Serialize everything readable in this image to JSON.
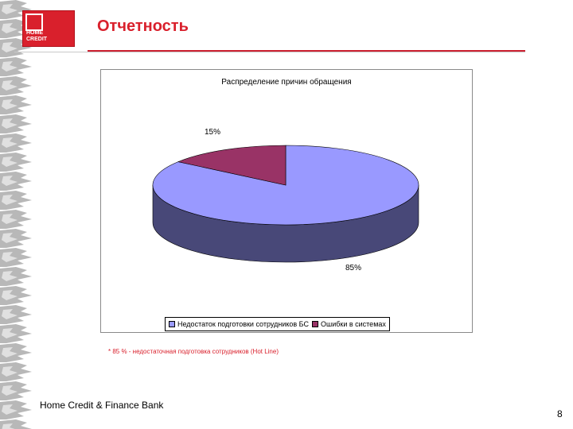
{
  "logo": {
    "text_line1": "HOME",
    "text_line2": "CREDIT"
  },
  "header": {
    "title": "Отчетность"
  },
  "chart_data": {
    "type": "pie",
    "title": "Распределение причин обращения",
    "slices": [
      {
        "name": "Недостаток подготовки сотрудников БС",
        "value": 85,
        "label": "85%",
        "color": "#9999ff"
      },
      {
        "name": "Ошибки в системах",
        "value": 15,
        "label": "15%",
        "color": "#993366"
      }
    ],
    "legend_position": "bottom",
    "style": "3d"
  },
  "footnote": "* 85 % - недостаточная подготовка сотрудников (Hot Line)",
  "footer": {
    "bank_name": "Home Credit & Finance Bank",
    "page_number": "8"
  }
}
